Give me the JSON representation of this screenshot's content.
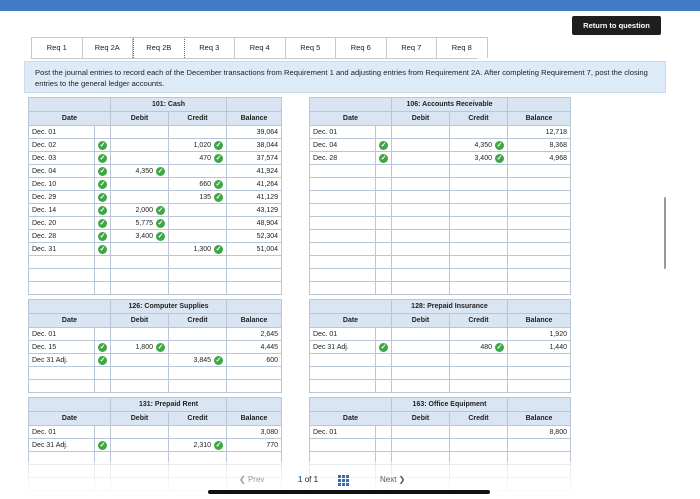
{
  "header": {
    "return_label": "Return to question"
  },
  "tabs": [
    "Req 1",
    "Req 2A",
    "Req 2B",
    "Req 3",
    "Req 4",
    "Req 5",
    "Req 6",
    "Req 7",
    "Req 8"
  ],
  "instruction": "Post the journal entries to record each of the December transactions from Requirement 1 and adjusting entries from Requirement 2A. After completing Requirement 7, post the closing entries to the general ledger accounts.",
  "columns": {
    "date": "Date",
    "debit": "Debit",
    "credit": "Credit",
    "balance": "Balance"
  },
  "accounts": {
    "cash": {
      "title": "101: Cash",
      "rows": [
        {
          "date": "Dec. 01",
          "check": false,
          "debit": "",
          "credit": "",
          "balance": "39,064"
        },
        {
          "date": "Dec. 02",
          "check": true,
          "debit": "",
          "credit": "1,020",
          "balance": "38,044"
        },
        {
          "date": "Dec. 03",
          "check": true,
          "debit": "",
          "credit": "470",
          "balance": "37,574"
        },
        {
          "date": "Dec. 04",
          "check": true,
          "debit": "4,350",
          "credit": "",
          "balance": "41,924"
        },
        {
          "date": "Dec. 10",
          "check": true,
          "debit": "",
          "credit": "660",
          "balance": "41,264"
        },
        {
          "date": "Dec. 29",
          "check": true,
          "debit": "",
          "credit": "135",
          "balance": "41,129"
        },
        {
          "date": "Dec. 14",
          "check": true,
          "debit": "2,000",
          "credit": "",
          "balance": "43,129"
        },
        {
          "date": "Dec. 20",
          "check": true,
          "debit": "5,775",
          "credit": "",
          "balance": "48,904"
        },
        {
          "date": "Dec. 28",
          "check": true,
          "debit": "3,400",
          "credit": "",
          "balance": "52,304"
        },
        {
          "date": "Dec. 31",
          "check": true,
          "debit": "",
          "credit": "1,300",
          "balance": "51,004"
        }
      ]
    },
    "ar": {
      "title": "106: Accounts Receivable",
      "rows": [
        {
          "date": "Dec. 01",
          "check": false,
          "debit": "",
          "credit": "",
          "balance": "12,718"
        },
        {
          "date": "Dec. 04",
          "check": true,
          "debit": "",
          "credit": "4,350",
          "balance": "8,368"
        },
        {
          "date": "Dec. 28",
          "check": true,
          "debit": "",
          "credit": "3,400",
          "balance": "4,968"
        }
      ]
    },
    "computer_supplies": {
      "title": "126: Computer Supplies",
      "rows": [
        {
          "date": "Dec. 01",
          "check": false,
          "debit": "",
          "credit": "",
          "balance": "2,645"
        },
        {
          "date": "Dec. 15",
          "check": true,
          "debit": "1,800",
          "credit": "",
          "balance": "4,445"
        },
        {
          "date": "Dec 31 Adj.",
          "check": true,
          "debit": "",
          "credit": "3,845",
          "balance": "600"
        }
      ]
    },
    "prepaid_insurance": {
      "title": "128: Prepaid Insurance",
      "rows": [
        {
          "date": "Dec. 01",
          "check": false,
          "debit": "",
          "credit": "",
          "balance": "1,920"
        },
        {
          "date": "Dec 31 Adj.",
          "check": true,
          "debit": "",
          "credit": "480",
          "balance": "1,440"
        }
      ]
    },
    "prepaid_rent": {
      "title": "131: Prepaid Rent",
      "rows": [
        {
          "date": "Dec. 01",
          "check": false,
          "debit": "",
          "credit": "",
          "balance": "3,080"
        },
        {
          "date": "Dec 31 Adj.",
          "check": true,
          "debit": "",
          "credit": "2,310",
          "balance": "770"
        }
      ]
    },
    "office_equipment": {
      "title": "163: Office Equipment",
      "rows": [
        {
          "date": "Dec. 01",
          "check": false,
          "debit": "",
          "credit": "",
          "balance": "8,800"
        }
      ]
    }
  },
  "pager": {
    "prev": "Prev",
    "page": "1",
    "of": "of 1",
    "next": "Next"
  },
  "colors": {
    "accent": "#3f7bc7",
    "panel_header": "#d9e5f3",
    "check": "#3fa646"
  },
  "icons": {
    "check": "checkmark-icon",
    "grid": "grid-icon"
  }
}
